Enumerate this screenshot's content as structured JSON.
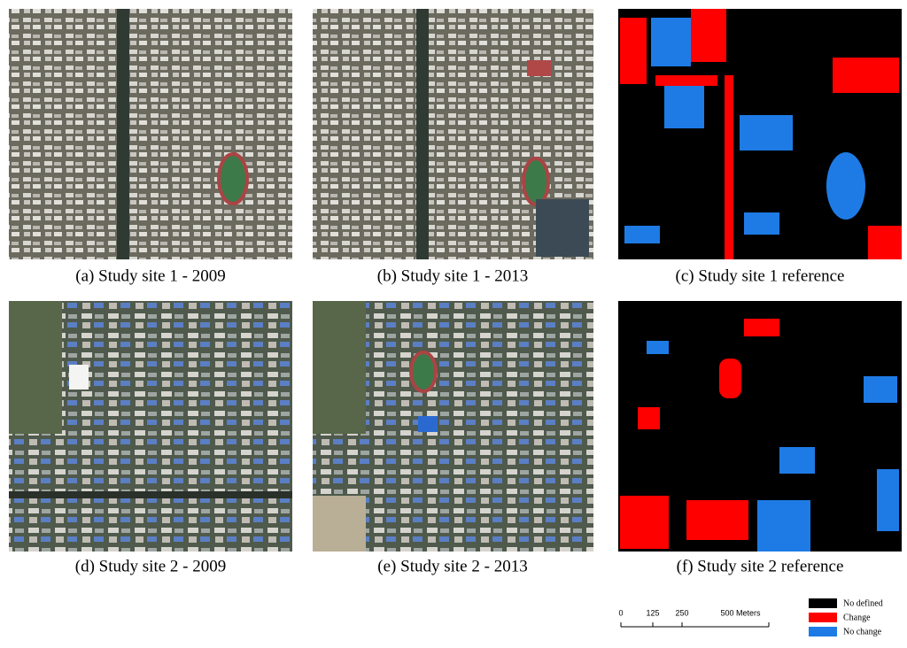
{
  "panels": [
    {
      "caption": "(a) Study site 1 - 2009"
    },
    {
      "caption": "(b) Study site 1 - 2013"
    },
    {
      "caption": "(c) Study site 1 reference"
    },
    {
      "caption": "(d) Study site 2 - 2009"
    },
    {
      "caption": "(e) Study site 2 - 2013"
    },
    {
      "caption": "(f) Study site 2 reference"
    }
  ],
  "scale_bar": {
    "labels": [
      "0",
      "125",
      "250",
      "500 Meters"
    ]
  },
  "legend": [
    {
      "label": "No defined",
      "color": "#000000"
    },
    {
      "label": "Change",
      "color": "#ff0000"
    },
    {
      "label": "No change",
      "color": "#1e7be6"
    }
  ]
}
